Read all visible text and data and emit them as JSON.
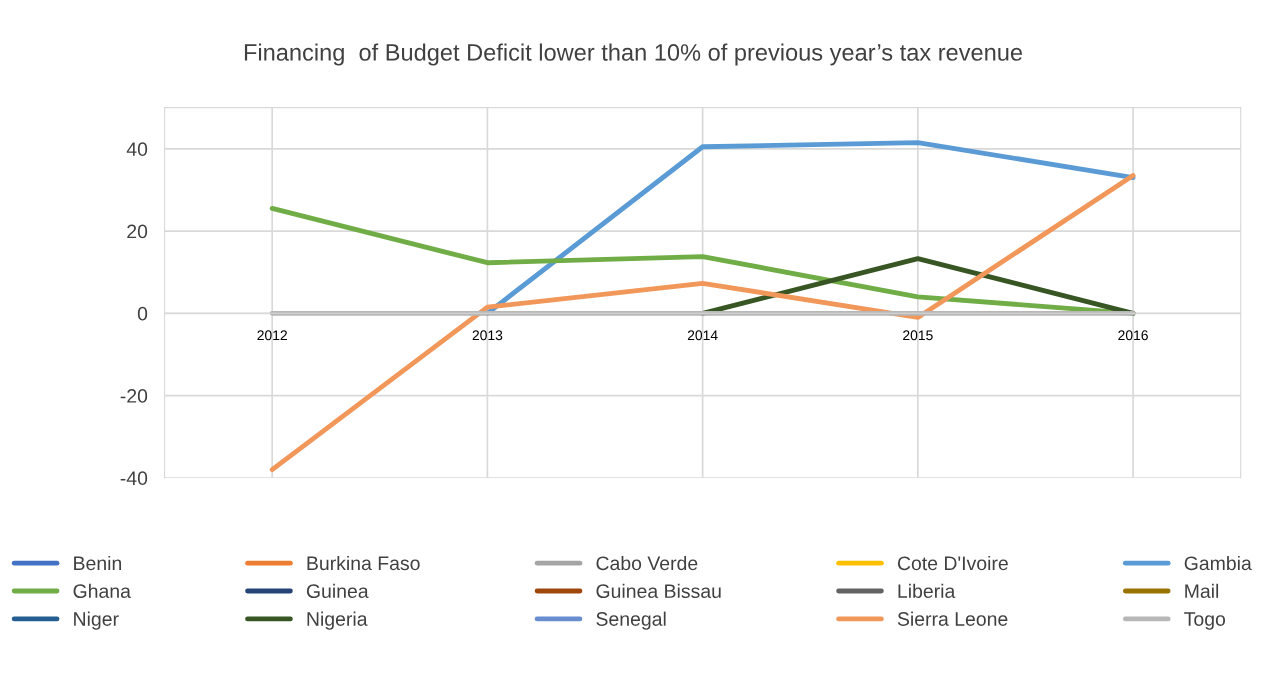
{
  "chart_data": {
    "type": "line",
    "title": "Financing  of Budget Deficit lower than 10% of previous year’s tax revenue",
    "categories": [
      "2012",
      "2013",
      "2014",
      "2015",
      "2016"
    ],
    "series": [
      {
        "name": "Benin",
        "color": "#4472c4",
        "values": [
          null,
          null,
          null,
          null,
          null
        ]
      },
      {
        "name": "Burkina Faso",
        "color": "#ed7d31",
        "values": [
          null,
          null,
          null,
          null,
          null
        ]
      },
      {
        "name": "Cabo Verde",
        "color": "#a5a5a5",
        "values": [
          null,
          null,
          null,
          null,
          null
        ]
      },
      {
        "name": "Cote D'Ivoire",
        "color": "#ffc000",
        "values": [
          null,
          null,
          null,
          null,
          null
        ]
      },
      {
        "name": "Gambia",
        "color": "#5b9bd5",
        "values": [
          null,
          0,
          40.5,
          41.5,
          33
        ]
      },
      {
        "name": "Ghana",
        "color": "#70ad47",
        "values": [
          25.5,
          12.3,
          13.8,
          4,
          0
        ]
      },
      {
        "name": "Guinea",
        "color": "#264478",
        "values": [
          null,
          null,
          null,
          null,
          null
        ]
      },
      {
        "name": "Guinea Bissau",
        "color": "#9e480e",
        "values": [
          null,
          null,
          null,
          null,
          null
        ]
      },
      {
        "name": "Liberia",
        "color": "#636363",
        "values": [
          null,
          null,
          null,
          null,
          null
        ]
      },
      {
        "name": "Mail",
        "color": "#997300",
        "values": [
          null,
          null,
          null,
          null,
          null
        ]
      },
      {
        "name": "Niger",
        "color": "#255e91",
        "values": [
          null,
          null,
          null,
          null,
          null
        ]
      },
      {
        "name": "Nigeria",
        "color": "#375623",
        "values": [
          null,
          null,
          0,
          13.3,
          0
        ]
      },
      {
        "name": "Senegal",
        "color": "#698ed0",
        "values": [
          null,
          null,
          null,
          null,
          null
        ]
      },
      {
        "name": "Sierra Leone",
        "color": "#f1975a",
        "values": [
          -38,
          1.5,
          7.3,
          -1,
          33.5
        ]
      },
      {
        "name": "Togo",
        "color": "#b7b7b7",
        "values": [
          0,
          0,
          0,
          0,
          0
        ]
      }
    ],
    "ylim": [
      -40,
      50
    ],
    "yticks": [
      -40,
      -20,
      0,
      20,
      40
    ],
    "grid": true,
    "legend": "bottom",
    "marker": "none",
    "line_style": "solid"
  }
}
